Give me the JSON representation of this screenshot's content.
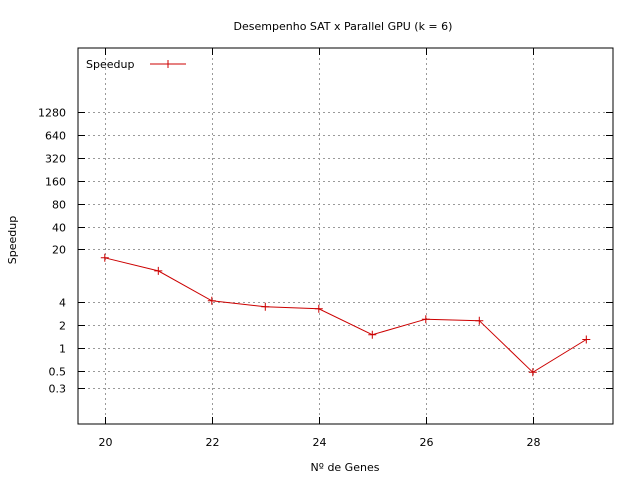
{
  "chart_data": {
    "type": "line",
    "title": "Desempenho SAT x Parallel GPU (k = 6)",
    "xlabel": "Nº de Genes",
    "ylabel": "Speedup",
    "x_scale": "linear",
    "y_scale": "log",
    "xlim": [
      19.5,
      29.5
    ],
    "ylim": [
      0.1,
      9000
    ],
    "x_ticks": [
      20,
      22,
      24,
      26,
      28
    ],
    "x_tick_labels": [
      "20",
      "22",
      "24",
      "26",
      "28"
    ],
    "y_ticks": [
      0.3,
      0.5,
      1,
      2,
      4,
      20,
      40,
      80,
      160,
      320,
      640,
      1280
    ],
    "y_tick_labels": [
      "0.3",
      "0.5",
      "1",
      "2",
      "4",
      "20",
      "40",
      "80",
      "160",
      "320",
      "640",
      "1280"
    ],
    "grid": true,
    "legend_position": "top-left",
    "series": [
      {
        "name": "Speedup",
        "color": "#cc0000",
        "marker": "plus",
        "x": [
          20,
          21,
          22,
          23,
          24,
          25,
          26,
          27,
          28,
          29
        ],
        "y": [
          15.5,
          10.4,
          4.2,
          3.5,
          3.3,
          1.5,
          2.4,
          2.3,
          0.48,
          1.3
        ]
      }
    ]
  }
}
